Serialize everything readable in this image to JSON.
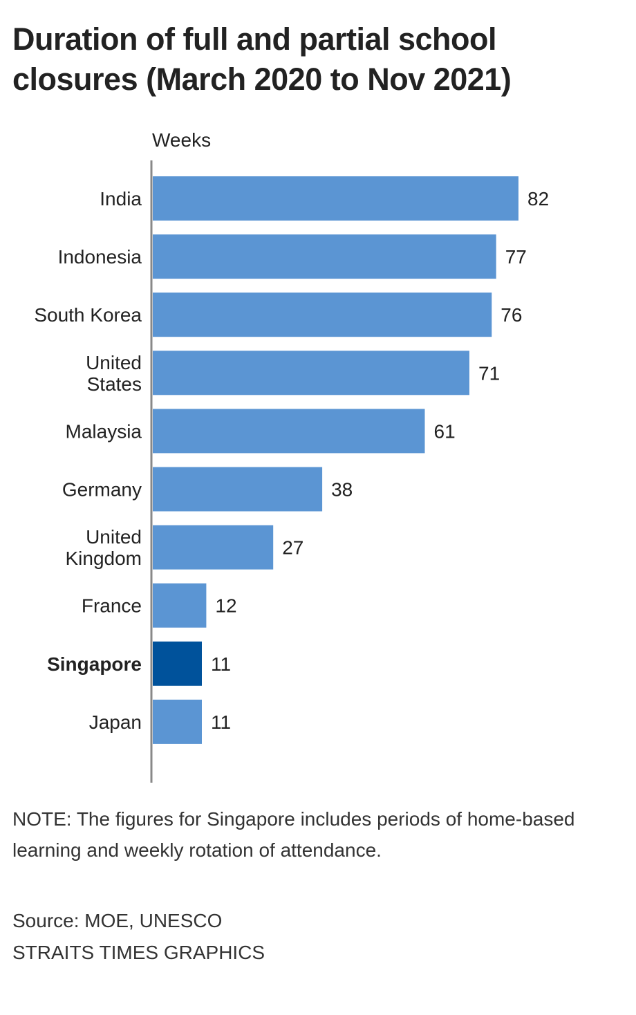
{
  "title": "Duration of full and partial school closures (March 2020 to Nov 2021)",
  "note": "NOTE: The figures for Singapore includes periods of home-based learning and weekly rotation of attendance.",
  "source": "Source: MOE, UNESCO",
  "credit": "STRAITS TIMES GRAPHICS",
  "colors": {
    "bar": "#5b95d3",
    "highlight": "#00529b",
    "axis": "#888888",
    "text": "#222222"
  },
  "chart_data": {
    "type": "bar",
    "orientation": "horizontal",
    "ylabel": "Weeks",
    "categories": [
      "India",
      "Indonesia",
      "South Korea",
      "United States",
      "Malaysia",
      "Germany",
      "United Kingdom",
      "France",
      "Singapore",
      "Japan"
    ],
    "category_lines": [
      [
        "India"
      ],
      [
        "Indonesia"
      ],
      [
        "South Korea"
      ],
      [
        "United",
        "States"
      ],
      [
        "Malaysia"
      ],
      [
        "Germany"
      ],
      [
        "United",
        "Kingdom"
      ],
      [
        "France"
      ],
      [
        "Singapore"
      ],
      [
        "Japan"
      ]
    ],
    "values": [
      82,
      77,
      76,
      71,
      61,
      38,
      27,
      12,
      11,
      11
    ],
    "highlight": "Singapore",
    "xlim": [
      0,
      82
    ],
    "grid": false,
    "legend": "none"
  }
}
